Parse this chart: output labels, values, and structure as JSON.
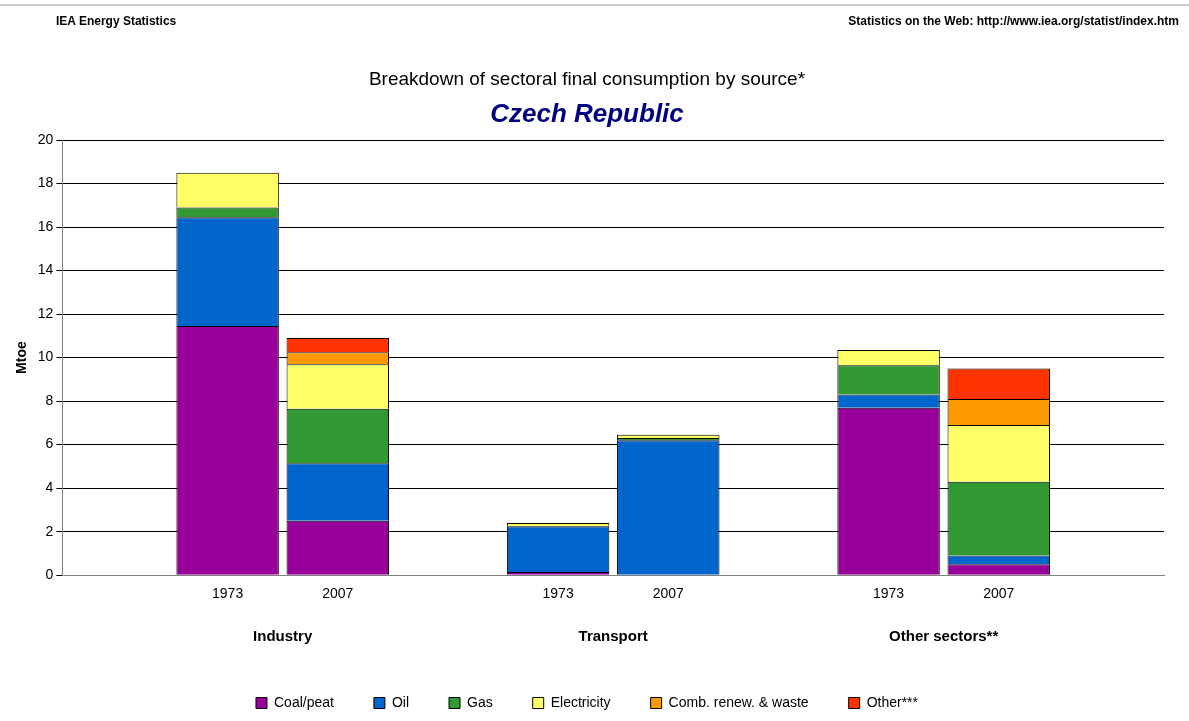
{
  "chart_data": {
    "type": "bar",
    "title": "Breakdown of sectoral final consumption by source*",
    "subtitle": "Czech Republic",
    "ylabel": "Mtoe",
    "categories": [
      null,
      "1973",
      "2007",
      null,
      "1973",
      "2007",
      null,
      "1973",
      "2007",
      null
    ],
    "stacked": true,
    "series": [
      {
        "name": "Coal/peat",
        "color": "#990099",
        "values": [
          null,
          11.45,
          2.5,
          null,
          0.15,
          0,
          null,
          7.7,
          0.5,
          null
        ]
      },
      {
        "name": "Oil",
        "color": "#0066cc",
        "values": [
          null,
          5.0,
          2.65,
          null,
          2.1,
          6.2,
          null,
          0.6,
          0.4,
          null
        ]
      },
      {
        "name": "Gas",
        "color": "#339933",
        "values": [
          null,
          0.45,
          2.5,
          null,
          0,
          0.1,
          null,
          1.35,
          3.4,
          null
        ]
      },
      {
        "name": "Electricity",
        "color": "#ffff66",
        "values": [
          null,
          1.6,
          2.05,
          null,
          0.15,
          0.15,
          null,
          0.7,
          2.6,
          null
        ]
      },
      {
        "name": "Comb. renew. & waste",
        "color": "#ff9900",
        "values": [
          null,
          0,
          0.55,
          null,
          0,
          0,
          null,
          0,
          1.2,
          null
        ]
      },
      {
        "name": "Other***",
        "color": "#ff3300",
        "values": [
          null,
          0,
          0.65,
          null,
          0,
          0,
          null,
          0,
          1.4,
          null
        ]
      }
    ],
    "ylim": [
      0,
      20
    ],
    "yticks": [
      0,
      2,
      4,
      6,
      8,
      10,
      12,
      14,
      16,
      18,
      20
    ],
    "grid": "y",
    "legend": "bottom",
    "annotations": [
      "IEA Energy Statistics",
      "Statistics on the Web: http://www.iea.org/statist/index.htm",
      "Industry",
      "Transport",
      "Other sectors**"
    ]
  }
}
